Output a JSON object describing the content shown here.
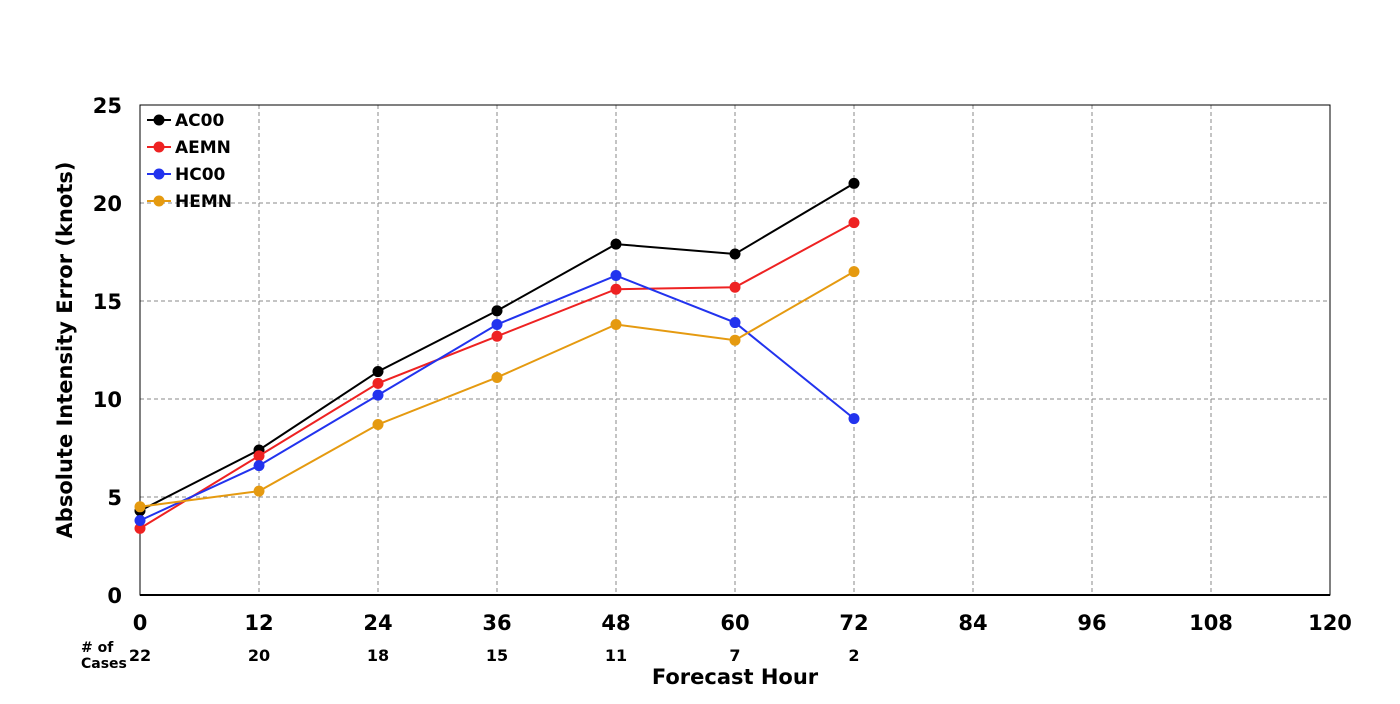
{
  "chart_data": {
    "type": "line",
    "xlabel": "Forecast Hour",
    "ylabel": "Absolute Intensity Error (knots)",
    "x": [
      0,
      12,
      24,
      36,
      48,
      60,
      72
    ],
    "x_ticks": [
      "0",
      "12",
      "24",
      "36",
      "48",
      "60",
      "72",
      "84",
      "96",
      "108",
      "120"
    ],
    "y_ticks": [
      "0",
      "5",
      "10",
      "15",
      "20",
      "25"
    ],
    "xlim": [
      0,
      120
    ],
    "ylim": [
      0,
      25
    ],
    "grid": true,
    "legend_position": "top-left",
    "series": [
      {
        "name": "AC00",
        "color": "#000000",
        "values": [
          4.3,
          7.4,
          11.4,
          14.5,
          17.9,
          17.4,
          21.0
        ]
      },
      {
        "name": "AEMN",
        "color": "#ee2222",
        "values": [
          3.4,
          7.1,
          10.8,
          13.2,
          15.6,
          15.7,
          19.0
        ]
      },
      {
        "name": "HC00",
        "color": "#2233ee",
        "values": [
          3.8,
          6.6,
          10.2,
          13.8,
          16.3,
          13.9,
          9.0
        ]
      },
      {
        "name": "HEMN",
        "color": "#e59a10",
        "values": [
          4.5,
          5.3,
          8.7,
          11.1,
          13.8,
          13.0,
          16.5
        ]
      }
    ],
    "cases": {
      "header_line1": "# of",
      "header_line2": "Cases",
      "values": [
        "22",
        "20",
        "18",
        "15",
        "11",
        "7",
        "2"
      ]
    }
  }
}
